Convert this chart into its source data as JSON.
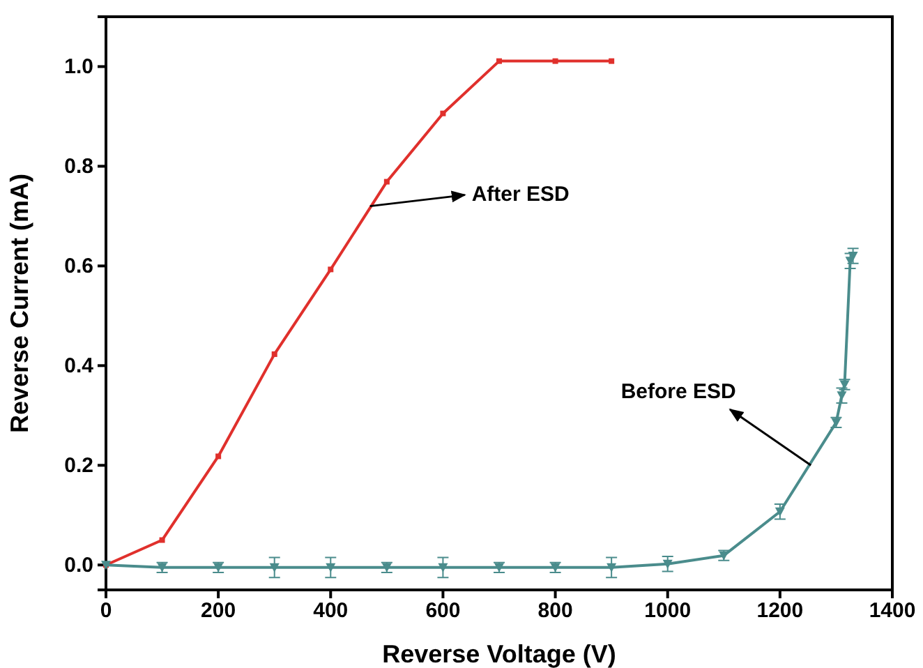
{
  "chart_data": {
    "type": "line",
    "xlabel": "Reverse Voltage (V)",
    "ylabel": "Reverse Current (mA)",
    "xlim": [
      0,
      1400
    ],
    "xticks": [
      0,
      200,
      400,
      600,
      800,
      1000,
      1200,
      1400
    ],
    "ylim": [
      -0.05,
      1.1
    ],
    "yticks": [
      {
        "value": 0,
        "label": "0.0"
      },
      0.2,
      0.4,
      0.6,
      0.8,
      {
        "value": 1,
        "label": "1.0"
      }
    ],
    "grid": false,
    "line_style": "solid",
    "series": [
      {
        "color": "#e0302c",
        "marker": "square",
        "x": [
          0,
          100,
          200,
          300,
          400,
          500,
          600,
          700,
          800,
          900
        ],
        "values": [
          0,
          0.05,
          0.218,
          0.423,
          0.593,
          0.769,
          0.906,
          1.011,
          1.011,
          1.011
        ]
      },
      {
        "color": "#4a8c8c",
        "marker": "triangle",
        "x": [
          0,
          100,
          200,
          300,
          400,
          500,
          600,
          700,
          800,
          900,
          1000,
          1100,
          1200,
          1300,
          1310,
          1315,
          1325,
          1330
        ],
        "values": [
          0,
          -0.005,
          -0.005,
          -0.005,
          -0.005,
          -0.005,
          -0.005,
          -0.005,
          -0.005,
          -0.005,
          0.002,
          0.019,
          0.107,
          0.286,
          0.34,
          0.362,
          0.61,
          0.62
        ],
        "errors": [
          null,
          0.01,
          0.01,
          0.02,
          0.02,
          0.01,
          0.02,
          0.01,
          0.01,
          0.02,
          0.015,
          0.01,
          0.015,
          0.01,
          0.015,
          0.01,
          0.015,
          0.015
        ]
      }
    ],
    "annotations": [
      {
        "text": "After ESD",
        "x": 470,
        "y": 0.72
      },
      {
        "text": "Before ESD",
        "x": 1255,
        "y": 0.2
      }
    ]
  }
}
